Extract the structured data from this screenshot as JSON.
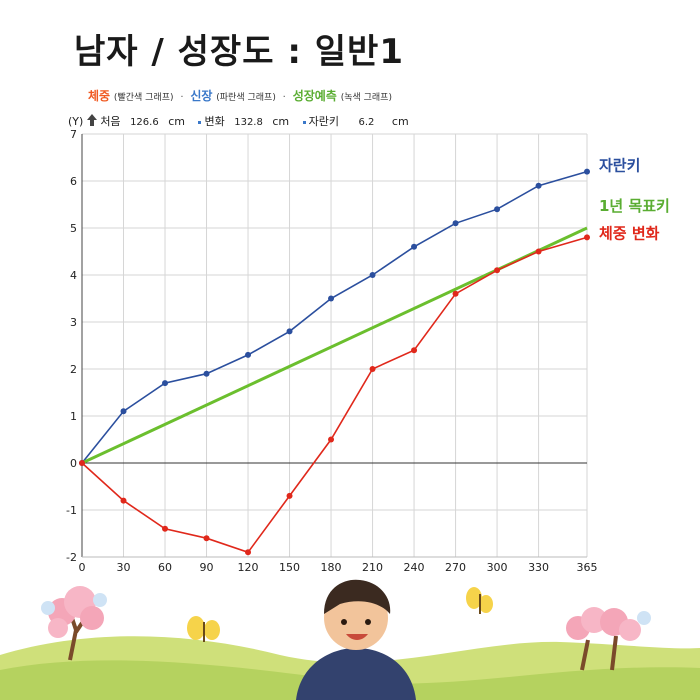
{
  "title": "남자 / 성장도 : 일반1",
  "legend": {
    "weight": {
      "label": "체중",
      "note": "(빨간색 그래프)",
      "color": "#f05a22"
    },
    "height": {
      "label": "신장",
      "note": "(파란색 그래프)",
      "color": "#3a78c9"
    },
    "forecast": {
      "label": "성장예측",
      "note": "(녹색 그래프)",
      "color": "#5aad32"
    },
    "separator": "·"
  },
  "readout": {
    "axis_label": "(Y)",
    "start_label": "처음",
    "start_value": "126.6",
    "change_label": "변화",
    "change_value": "132.8",
    "growth_label": "자란키",
    "growth_value": "6.2",
    "unit": "cm"
  },
  "chart_data": {
    "type": "line",
    "x": [
      0,
      30,
      60,
      90,
      120,
      150,
      180,
      210,
      240,
      270,
      300,
      330,
      365
    ],
    "xlim": [
      0,
      365
    ],
    "ylim": [
      -2,
      7
    ],
    "xticks": [
      "0",
      "30",
      "60",
      "90",
      "120",
      "150",
      "180",
      "210",
      "240",
      "270",
      "300",
      "330",
      "365"
    ],
    "yticks": [
      "-2",
      "-1",
      "0",
      "1",
      "2",
      "3",
      "4",
      "5",
      "6",
      "7"
    ],
    "grid": true,
    "series": [
      {
        "name": "자란키",
        "color": "#2b4f9e",
        "values": [
          0,
          1.1,
          1.7,
          1.9,
          2.3,
          2.8,
          3.5,
          4.0,
          4.6,
          5.1,
          5.4,
          5.9,
          6.2
        ]
      },
      {
        "name": "1년 목표키",
        "color": "#6bbf2e",
        "line_only": true,
        "x": [
          0,
          365
        ],
        "values": [
          0,
          5.0
        ]
      },
      {
        "name": "체중 변화",
        "color": "#e0281b",
        "values": [
          0,
          -0.8,
          -1.4,
          -1.6,
          -1.9,
          -0.7,
          0.5,
          2.0,
          2.4,
          3.6,
          4.1,
          4.5,
          4.8
        ]
      }
    ]
  }
}
